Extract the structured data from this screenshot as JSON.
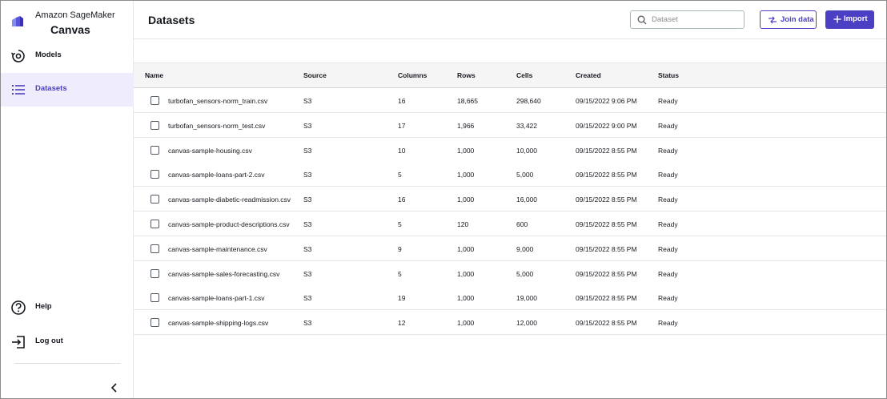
{
  "brand": {
    "subtitle": "Amazon SageMaker",
    "name": "Canvas",
    "accent_color": "#4b3fc3"
  },
  "sidebar": {
    "top_items": [
      {
        "label": "Models",
        "icon": "models-icon",
        "active": false
      },
      {
        "label": "Datasets",
        "icon": "list-icon",
        "active": true
      }
    ],
    "bottom_items": [
      {
        "label": "Help",
        "icon": "help-icon"
      },
      {
        "label": "Log out",
        "icon": "logout-icon"
      }
    ],
    "collapse_icon": "chevron-left-icon"
  },
  "header": {
    "title": "Datasets",
    "search_placeholder": "Dataset",
    "join_label": "Join data",
    "import_label": "Import"
  },
  "table": {
    "columns": [
      "Name",
      "Source",
      "Columns",
      "Rows",
      "Cells",
      "Created",
      "Status"
    ],
    "rows": [
      {
        "name": "turbofan_sensors-norm_train.csv",
        "source": "S3",
        "columns": "16",
        "rows": "18,665",
        "cells": "298,640",
        "created": "09/15/2022 9:06 PM",
        "status": "Ready"
      },
      {
        "name": "turbofan_sensors-norm_test.csv",
        "source": "S3",
        "columns": "17",
        "rows": "1,966",
        "cells": "33,422",
        "created": "09/15/2022 9:00 PM",
        "status": "Ready"
      },
      {
        "name": "canvas-sample-housing.csv",
        "source": "S3",
        "columns": "10",
        "rows": "1,000",
        "cells": "10,000",
        "created": "09/15/2022 8:55 PM",
        "status": "Ready"
      },
      {
        "name": "canvas-sample-loans-part-2.csv",
        "source": "S3",
        "columns": "5",
        "rows": "1,000",
        "cells": "5,000",
        "created": "09/15/2022 8:55 PM",
        "status": "Ready"
      },
      {
        "name": "canvas-sample-diabetic-readmission.csv",
        "source": "S3",
        "columns": "16",
        "rows": "1,000",
        "cells": "16,000",
        "created": "09/15/2022 8:55 PM",
        "status": "Ready"
      },
      {
        "name": "canvas-sample-product-descriptions.csv",
        "source": "S3",
        "columns": "5",
        "rows": "120",
        "cells": "600",
        "created": "09/15/2022 8:55 PM",
        "status": "Ready"
      },
      {
        "name": "canvas-sample-maintenance.csv",
        "source": "S3",
        "columns": "9",
        "rows": "1,000",
        "cells": "9,000",
        "created": "09/15/2022 8:55 PM",
        "status": "Ready"
      },
      {
        "name": "canvas-sample-sales-forecasting.csv",
        "source": "S3",
        "columns": "5",
        "rows": "1,000",
        "cells": "5,000",
        "created": "09/15/2022 8:55 PM",
        "status": "Ready"
      },
      {
        "name": "canvas-sample-loans-part-1.csv",
        "source": "S3",
        "columns": "19",
        "rows": "1,000",
        "cells": "19,000",
        "created": "09/15/2022 8:55 PM",
        "status": "Ready"
      },
      {
        "name": "canvas-sample-shipping-logs.csv",
        "source": "S3",
        "columns": "12",
        "rows": "1,000",
        "cells": "12,000",
        "created": "09/15/2022 8:55 PM",
        "status": "Ready"
      }
    ]
  }
}
